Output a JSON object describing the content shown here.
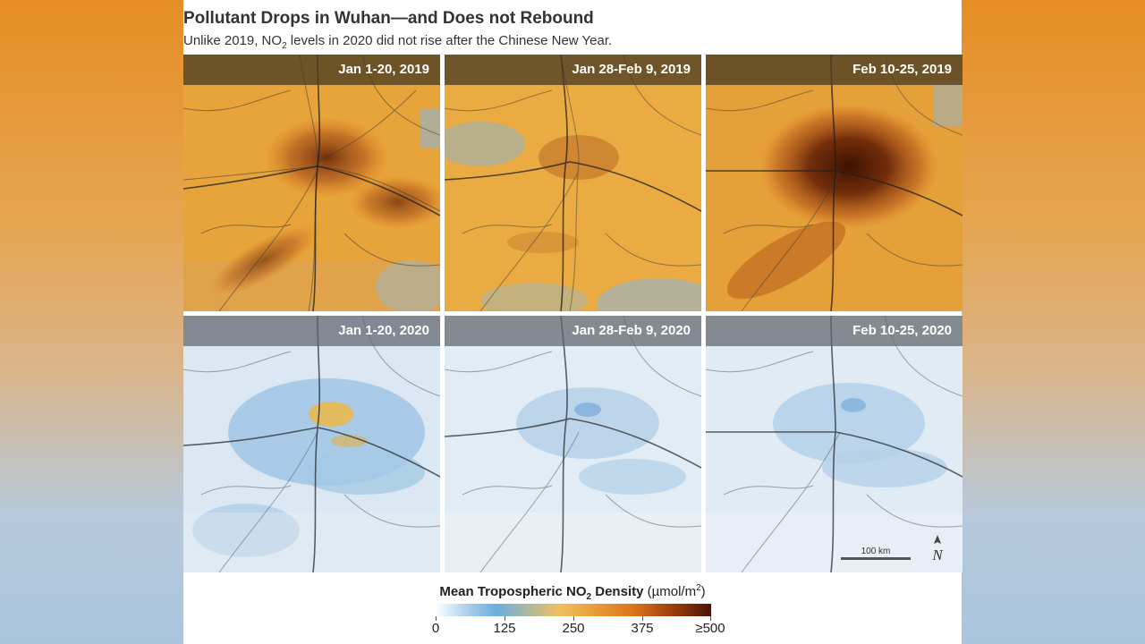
{
  "title": "Pollutant Drops in Wuhan—and Does not Rebound",
  "subtitle_prefix": "Unlike 2019, NO",
  "subtitle_sub": "2",
  "subtitle_suffix": " levels in 2020 did not rise after the Chinese New Year.",
  "panels": [
    {
      "label": "Jan 1-20, 2019",
      "year": 2019
    },
    {
      "label": "Jan 28-Feb 9, 2019",
      "year": 2019
    },
    {
      "label": "Feb 10-25, 2019",
      "year": 2019
    },
    {
      "label": "Jan 1-20, 2020",
      "year": 2020
    },
    {
      "label": "Jan 28-Feb 9, 2020",
      "year": 2020
    },
    {
      "label": "Feb 10-25, 2020",
      "year": 2020
    }
  ],
  "scale_bar": {
    "label": "100 km"
  },
  "north_arrow": {
    "label": "N"
  },
  "legend": {
    "title_bold_prefix": "Mean Tropospheric NO",
    "title_bold_sub": "2",
    "title_bold_suffix": " Density",
    "units_prefix": " (µmol/m",
    "units_sup": "2",
    "units_suffix": ")",
    "ticks": [
      "0",
      "125",
      "250",
      "375",
      "≥500"
    ],
    "colors": [
      "#ffffff",
      "#a8cdea",
      "#6aaee0",
      "#f0c060",
      "#e9a23a",
      "#d9741d",
      "#9e3d0e",
      "#4a1402"
    ]
  }
}
